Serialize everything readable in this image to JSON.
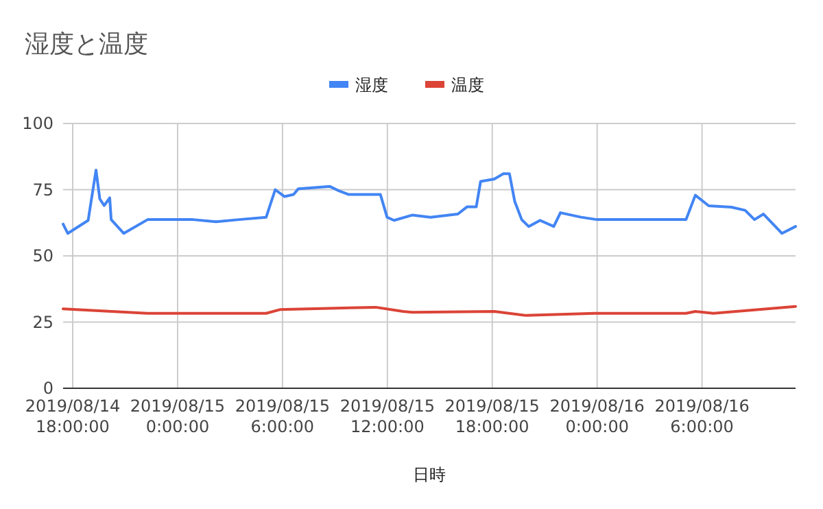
{
  "chart_data": {
    "type": "line",
    "title": "湿度と温度",
    "xlabel": "日時",
    "legend": "top",
    "grid": true,
    "xlim": [
      "2019-08-14T17:27",
      "2019-08-16T11:21"
    ],
    "xticks": [
      {
        "value": "2019-08-14T18:00",
        "label": "2019/08/14\n18:00:00"
      },
      {
        "value": "2019-08-15T00:00",
        "label": "2019/08/15\n0:00:00"
      },
      {
        "value": "2019-08-15T06:00",
        "label": "2019/08/15\n6:00:00"
      },
      {
        "value": "2019-08-15T12:00",
        "label": "2019/08/15\n12:00:00"
      },
      {
        "value": "2019-08-15T18:00",
        "label": "2019/08/15\n18:00:00"
      },
      {
        "value": "2019-08-16T00:00",
        "label": "2019/08/16\n0:00:00"
      },
      {
        "value": "2019-08-16T06:00",
        "label": "2019/08/16\n6:00:00"
      }
    ],
    "ylim": [
      0,
      100
    ],
    "yticks": [
      0,
      25,
      50,
      75,
      100
    ],
    "series": [
      {
        "name": "湿度",
        "color": "#4285f4",
        "x": [
          "2019-08-14T17:27",
          "2019-08-14T17:43",
          "2019-08-14T18:53",
          "2019-08-14T19:20",
          "2019-08-14T19:33",
          "2019-08-14T19:48",
          "2019-08-14T20:07",
          "2019-08-14T20:12",
          "2019-08-14T20:55",
          "2019-08-14T22:17",
          "2019-08-14T23:51",
          "2019-08-15T00:53",
          "2019-08-15T02:12",
          "2019-08-15T03:30",
          "2019-08-15T05:04",
          "2019-08-15T05:35",
          "2019-08-15T06:07",
          "2019-08-15T06:38",
          "2019-08-15T06:54",
          "2019-08-15T08:43",
          "2019-08-15T09:15",
          "2019-08-15T09:46",
          "2019-08-15T11:36",
          "2019-08-15T11:59",
          "2019-08-15T12:23",
          "2019-08-15T13:25",
          "2019-08-15T14:28",
          "2019-08-15T16:02",
          "2019-08-15T16:33",
          "2019-08-15T17:05",
          "2019-08-15T17:20",
          "2019-08-15T18:07",
          "2019-08-15T18:38",
          "2019-08-15T18:59",
          "2019-08-15T19:17",
          "2019-08-15T19:41",
          "2019-08-15T20:05",
          "2019-08-15T20:44",
          "2019-08-15T21:31",
          "2019-08-15T21:54",
          "2019-08-15T23:05",
          "2019-08-15T23:59",
          "2019-08-16T05:05",
          "2019-08-16T05:37",
          "2019-08-16T06:23",
          "2019-08-16T07:41",
          "2019-08-16T08:28",
          "2019-08-16T09:00",
          "2019-08-16T09:31",
          "2019-08-16T10:34",
          "2019-08-16T11:21"
        ],
        "values": [
          62,
          58.5,
          63.4,
          82.4,
          71.5,
          69,
          71.9,
          63.7,
          58.5,
          63.7,
          63.7,
          63.7,
          62.9,
          63.7,
          64.6,
          75,
          72.4,
          73.2,
          75.3,
          76.2,
          74.5,
          73.2,
          73.2,
          64.6,
          63.4,
          65.4,
          64.6,
          65.8,
          68.5,
          68.5,
          78.1,
          79,
          81,
          81,
          70.6,
          63.7,
          61.1,
          63.4,
          61.1,
          66.3,
          64.6,
          63.7,
          63.7,
          72.9,
          68.9,
          68.4,
          67.2,
          63.7,
          65.8,
          58.5,
          61.1
        ]
      },
      {
        "name": "温度",
        "color": "#db4437",
        "x": [
          "2019-08-14T17:27",
          "2019-08-14T22:17",
          "2019-08-15T05:04",
          "2019-08-15T05:51",
          "2019-08-15T11:20",
          "2019-08-15T12:54",
          "2019-08-15T13:25",
          "2019-08-15T18:07",
          "2019-08-15T19:56",
          "2019-08-15T23:52",
          "2019-08-16T05:05",
          "2019-08-16T05:37",
          "2019-08-16T06:39",
          "2019-08-16T11:21"
        ],
        "values": [
          30,
          28.3,
          28.3,
          29.7,
          30.6,
          29,
          28.7,
          29,
          27.5,
          28.3,
          28.3,
          29,
          28.3,
          30.9
        ]
      }
    ]
  }
}
